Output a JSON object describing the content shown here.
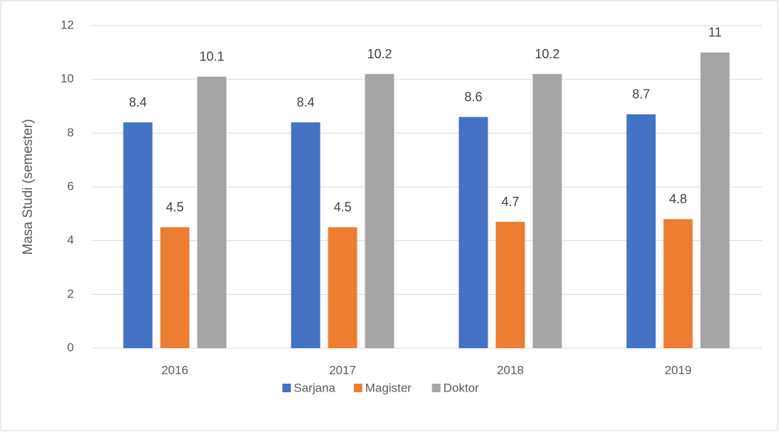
{
  "chart_data": {
    "type": "bar",
    "y_axis_label": "Masa Studi (semester)",
    "categories": [
      "2016",
      "2017",
      "2018",
      "2019"
    ],
    "series": [
      {
        "name": "Sarjana",
        "color": "#4472c4",
        "values": [
          8.4,
          8.4,
          8.6,
          8.7
        ]
      },
      {
        "name": "Magister",
        "color": "#ed7d31",
        "values": [
          4.5,
          4.5,
          4.7,
          4.8
        ]
      },
      {
        "name": "Doktor",
        "color": "#a5a5a5",
        "values": [
          10.1,
          10.2,
          10.2,
          11
        ]
      }
    ],
    "ylim": [
      0,
      12
    ],
    "yticks": [
      0,
      2,
      4,
      6,
      8,
      10,
      12
    ],
    "grid": true,
    "legend": "bottom"
  }
}
